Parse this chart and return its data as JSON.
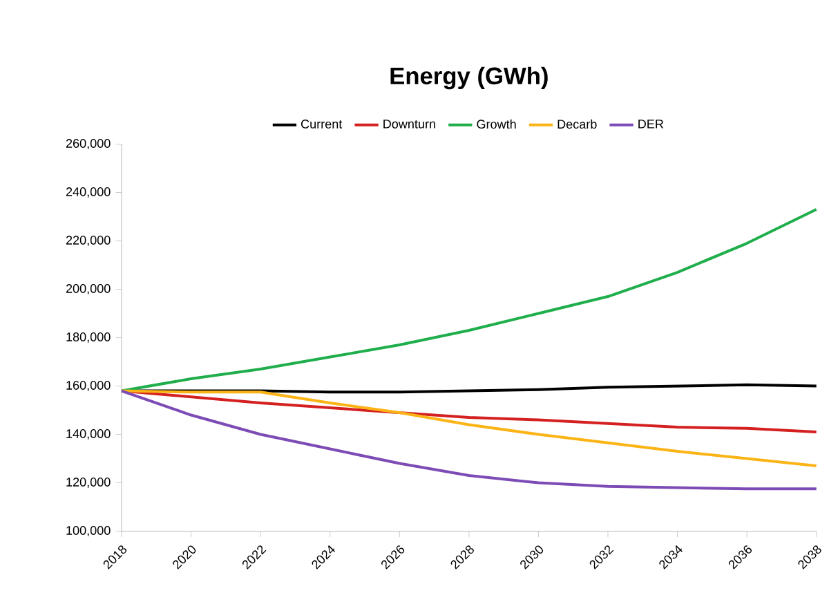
{
  "chart_data": {
    "type": "line",
    "title": "Energy (GWh)",
    "x": [
      2018,
      2020,
      2022,
      2024,
      2026,
      2028,
      2030,
      2032,
      2034,
      2036,
      2038
    ],
    "series": [
      {
        "name": "Current",
        "color": "#000000",
        "values": [
          158000,
          158000,
          158000,
          157500,
          157500,
          158000,
          158500,
          159500,
          160000,
          160500,
          160000
        ]
      },
      {
        "name": "Downturn",
        "color": "#d42020",
        "values": [
          158000,
          155500,
          153000,
          151000,
          149000,
          147000,
          146000,
          144500,
          143000,
          142500,
          141000
        ]
      },
      {
        "name": "Growth",
        "color": "#1fae4b",
        "values": [
          158000,
          163000,
          167000,
          172000,
          177000,
          183000,
          190000,
          197000,
          207000,
          219000,
          233000
        ]
      },
      {
        "name": "Decarb",
        "color": "#fbb416",
        "values": [
          158000,
          157500,
          157500,
          153000,
          149000,
          144000,
          140000,
          136500,
          133000,
          130000,
          127000
        ]
      },
      {
        "name": "DER",
        "color": "#7d4bb5",
        "values": [
          158000,
          148000,
          140000,
          134000,
          128000,
          123000,
          120000,
          118500,
          118000,
          117500,
          117500
        ]
      }
    ],
    "xlim": [
      2018,
      2038
    ],
    "xticks": [
      2018,
      2020,
      2022,
      2024,
      2026,
      2028,
      2030,
      2032,
      2034,
      2036,
      2038
    ],
    "ylim": [
      100000,
      260000
    ],
    "yticks": [
      {
        "value": 100000,
        "label": "100,000"
      },
      {
        "value": 120000,
        "label": "120,000"
      },
      {
        "value": 140000,
        "label": "140,000"
      },
      {
        "value": 160000,
        "label": "160,000"
      },
      {
        "value": 180000,
        "label": "180,000"
      },
      {
        "value": 200000,
        "label": "200,000"
      },
      {
        "value": 220000,
        "label": "220,000"
      },
      {
        "value": 240000,
        "label": "240,000"
      },
      {
        "value": 260000,
        "label": "260,000"
      }
    ],
    "legend": "top",
    "grid": false,
    "marker": "none",
    "line_style": "solid"
  }
}
